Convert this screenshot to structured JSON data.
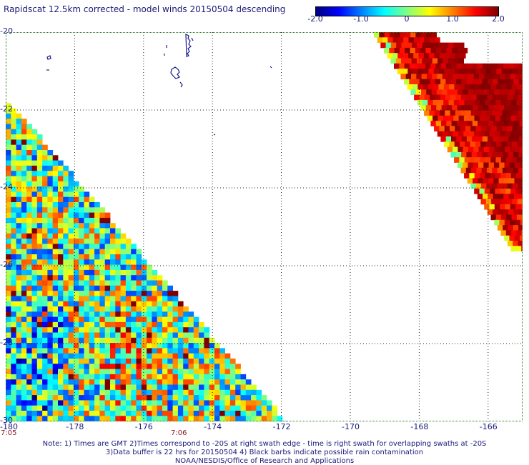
{
  "title": "Rapidscat 12.5km corrected - model winds 20150504 descending",
  "colorbar": {
    "tick_labels": [
      "-2.0",
      "-1.0",
      "0",
      "1.0",
      "2.0"
    ],
    "tick_values": [
      -2.0,
      -1.0,
      0,
      1.0,
      2.0
    ],
    "range": [
      -2.0,
      2.0
    ],
    "stops": [
      "#00007f",
      "#0000ff",
      "#0080ff",
      "#00ffff",
      "#80ff80",
      "#ffff00",
      "#ff8000",
      "#ff0000",
      "#7f0000"
    ]
  },
  "map": {
    "lon_range": [
      -180,
      -165
    ],
    "lat_range": [
      -30,
      -20
    ],
    "lat_labels": [
      "-20",
      "-22",
      "-24",
      "-26",
      "-28",
      "-30"
    ],
    "lat_values": [
      -20,
      -22,
      -24,
      -26,
      -28,
      -30
    ],
    "lon_labels": [
      "-180",
      "-178",
      "-176",
      "-174",
      "-172",
      "-170",
      "-168",
      "-166"
    ],
    "lon_values": [
      -180,
      -178,
      -176,
      -174,
      -172,
      -170,
      -168,
      -166
    ],
    "grid": true,
    "time_labels": [
      {
        "text": "7:05",
        "lon": -180
      },
      {
        "text": "7:06",
        "lon": -175
      }
    ]
  },
  "notes": [
    "Note: 1) Times are GMT 2)Times correspond to -20S at right swath edge - time is right swath for overlapping swaths at -20S",
    "3)Data buffer is 22 hrs for 20150504 4) Black barbs indicate possible rain contamination",
    "NOAA/NESDIS/Office of Research and Applications"
  ]
}
